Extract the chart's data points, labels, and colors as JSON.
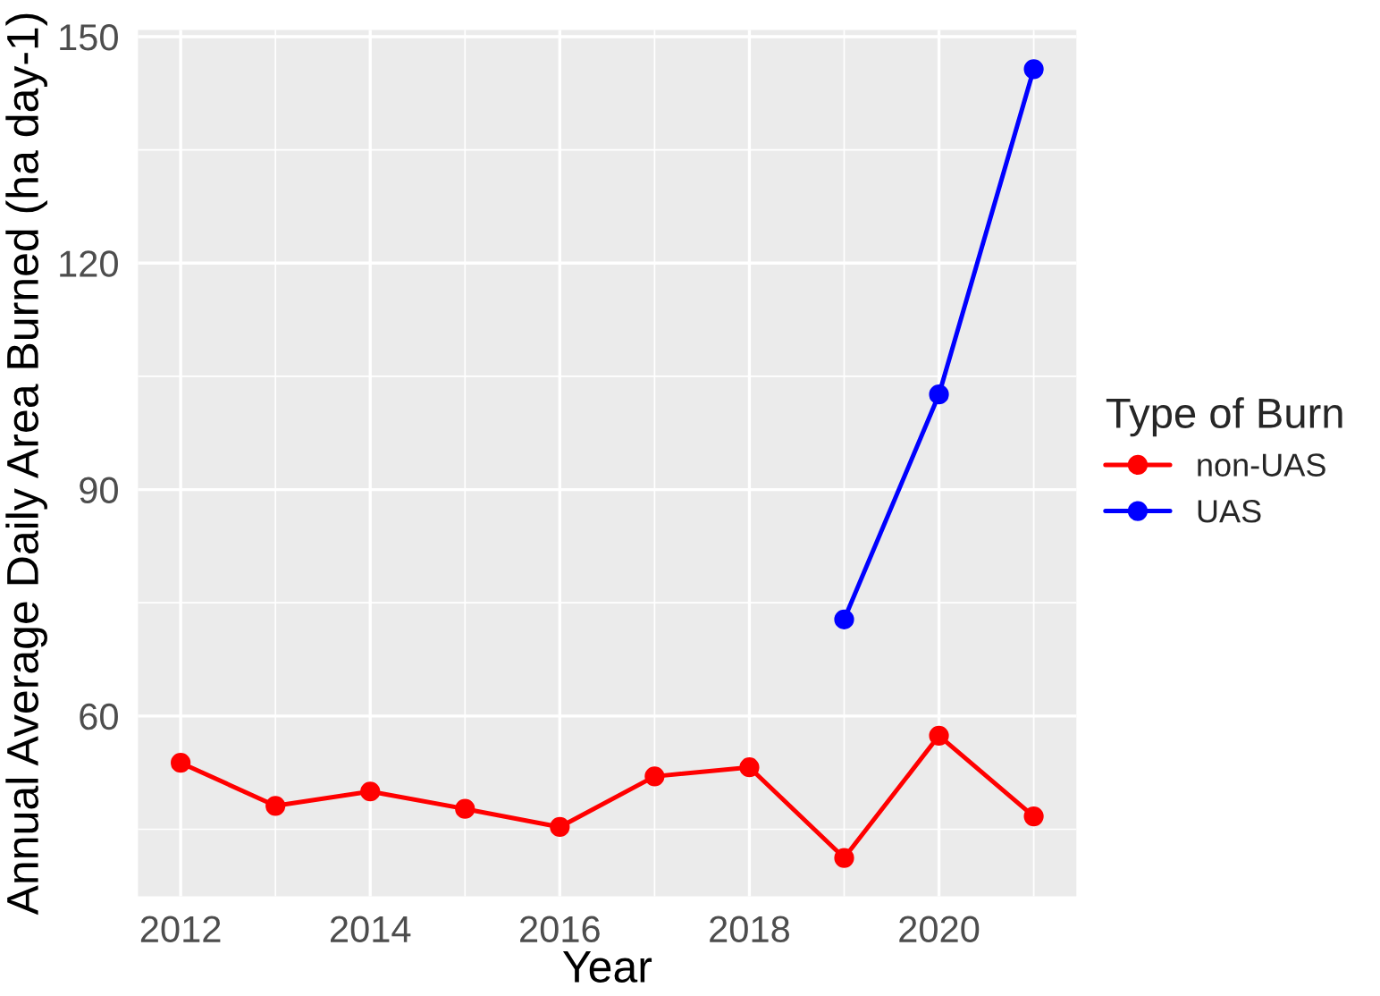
{
  "chart_data": {
    "type": "line",
    "xlabel": "Year",
    "ylabel": "Annual Average Daily Area Burned (ha day-1)",
    "legend_title": "Type of Burn",
    "x": [
      2012,
      2013,
      2014,
      2015,
      2016,
      2017,
      2018,
      2019,
      2020,
      2021
    ],
    "series": [
      {
        "name": "non-UAS",
        "color": "#ff0000",
        "values": [
          53.8,
          48.1,
          50.0,
          47.7,
          45.3,
          52.0,
          53.2,
          41.2,
          57.4,
          46.7
        ]
      },
      {
        "name": "UAS",
        "color": "#0000ff",
        "values": [
          null,
          null,
          null,
          null,
          null,
          null,
          null,
          72.8,
          102.6,
          145.7
        ]
      }
    ],
    "xlim": [
      2011.55,
      2021.45
    ],
    "xticks": [
      2012,
      2014,
      2016,
      2018,
      2020
    ],
    "ylim": [
      36.1,
      150.9
    ],
    "yticks": [
      60,
      90,
      120,
      150
    ],
    "grid": true,
    "legend": "right",
    "marker": "circle",
    "line_style": "solid"
  }
}
